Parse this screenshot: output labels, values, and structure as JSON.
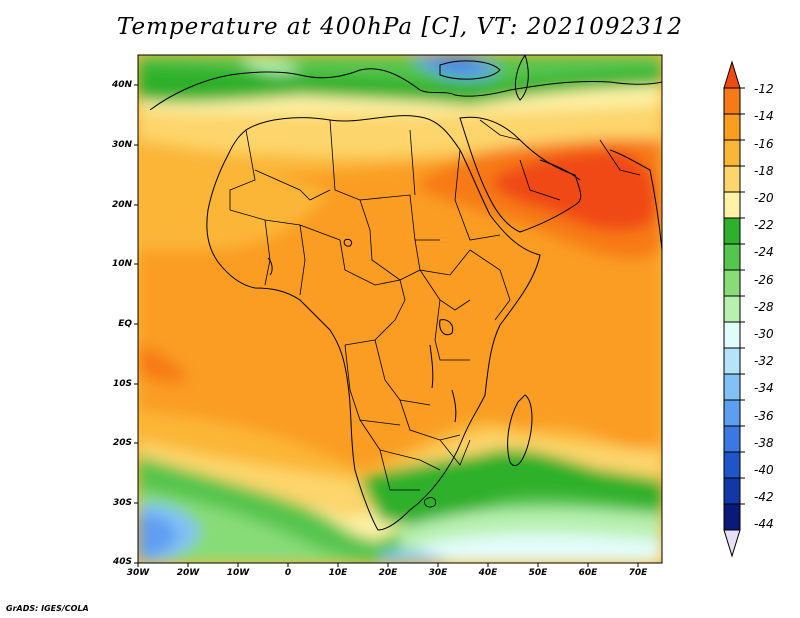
{
  "title": "Temperature at 400hPa [C], VT: 2021092312",
  "credit": "GrADS: IGES/COLA",
  "map": {
    "lon_range": [
      -30,
      75
    ],
    "lat_range": [
      -40,
      45
    ],
    "x_ticks": [
      "30W",
      "20W",
      "10W",
      "0",
      "10E",
      "20E",
      "30E",
      "40E",
      "50E",
      "60E",
      "70E"
    ],
    "y_ticks": [
      "40N",
      "30N",
      "20N",
      "10N",
      "EQ",
      "10S",
      "20S",
      "30S",
      "40S"
    ]
  },
  "colorbar": {
    "labels": [
      "-12",
      "-14",
      "-16",
      "-18",
      "-20",
      "-22",
      "-24",
      "-26",
      "-28",
      "-30",
      "-32",
      "-34",
      "-36",
      "-38",
      "-40",
      "-42",
      "-44"
    ],
    "colors": [
      "#f04a12",
      "#f77a18",
      "#fa9d20",
      "#fbb637",
      "#fcd56c",
      "#fdf2a5",
      "#2fb02a",
      "#56c54d",
      "#87dc78",
      "#b8f0b0",
      "#e2fdf9",
      "#b4e3fa",
      "#82c1f5",
      "#5e9ef1",
      "#3b78e2",
      "#1f55c8",
      "#1238a8",
      "#0b1a7a",
      "#e6e0f6"
    ]
  }
}
